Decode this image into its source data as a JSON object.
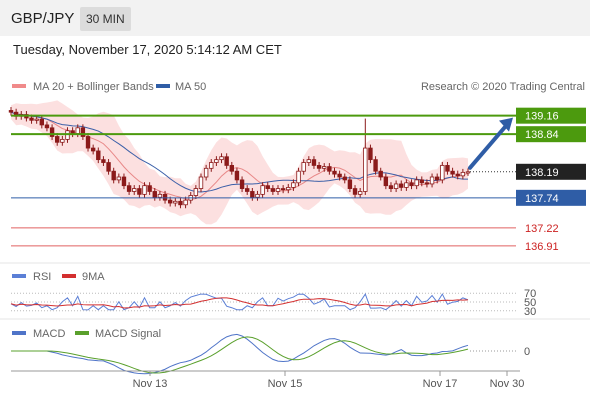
{
  "header": {
    "pair": "GBP/JPY",
    "timeframe": "30 MIN",
    "datetime": "Tuesday, November 17, 2020 5:14:12 AM CET"
  },
  "legends": {
    "ma20": "MA 20 + Bollinger Bands",
    "ma50": "MA 50",
    "copyright": "Research © 2020 Trading Central",
    "rsi": "RSI",
    "rsi_ma": "9MA",
    "macd": "MACD",
    "macd_signal": "MACD Signal"
  },
  "colors": {
    "green": "#4c9a0e",
    "blue": "#2f5da6",
    "red": "#e06060",
    "candle": "#8b1a1a",
    "band": "#fbd5d5",
    "ma20": "#e88888",
    "ma50": "#3b5fa8",
    "rsi": "#5b7fd6",
    "rsi_ma": "#d32f2f",
    "macd": "#4f74c8",
    "macd_signal": "#5aa02c"
  },
  "chart_data": {
    "type": "candlestick",
    "ylim": [
      136.7,
      139.5
    ],
    "x_labels": [
      "Nov 13",
      "Nov 15",
      "Nov 17",
      "Nov 30"
    ],
    "price_levels": [
      {
        "name": "resistance2",
        "value": 139.16,
        "label": "139.16",
        "style": "green-box"
      },
      {
        "name": "resistance1",
        "value": 138.84,
        "label": "138.84",
        "style": "green-box"
      },
      {
        "name": "last-price",
        "value": 138.19,
        "label": "138.19",
        "style": "dark-box"
      },
      {
        "name": "pivot",
        "value": 137.74,
        "label": "137.74",
        "style": "blue-box"
      },
      {
        "name": "support1",
        "value": 137.22,
        "label": "137.22",
        "style": "red-text"
      },
      {
        "name": "support2",
        "value": 136.91,
        "label": "136.91",
        "style": "red-text"
      }
    ],
    "close": [
      139.22,
      139.15,
      139.18,
      139.12,
      139.08,
      139.1,
      139.0,
      138.95,
      138.8,
      138.7,
      138.75,
      138.9,
      138.85,
      138.95,
      138.8,
      138.6,
      138.55,
      138.4,
      138.35,
      138.2,
      138.05,
      138.1,
      137.95,
      137.85,
      137.9,
      137.8,
      137.95,
      137.85,
      137.75,
      137.8,
      137.7,
      137.65,
      137.68,
      137.62,
      137.7,
      137.78,
      137.9,
      138.1,
      138.25,
      138.35,
      138.4,
      138.45,
      138.3,
      138.2,
      138.05,
      137.9,
      137.85,
      137.75,
      137.8,
      137.95,
      137.9,
      137.85,
      137.9,
      137.88,
      137.92,
      138.0,
      138.2,
      138.35,
      138.4,
      138.3,
      138.25,
      138.28,
      138.2,
      138.15,
      138.1,
      138.05,
      137.9,
      137.8,
      137.85,
      138.6,
      138.4,
      138.2,
      138.1,
      137.95,
      137.9,
      137.98,
      137.92,
      138.0,
      137.95,
      138.05,
      138.0,
      137.98,
      138.1,
      138.05,
      138.3,
      138.2,
      138.15,
      138.12,
      138.18,
      138.19
    ],
    "rsi_levels": [
      70,
      50,
      30
    ],
    "macd_zero_label": "0"
  }
}
